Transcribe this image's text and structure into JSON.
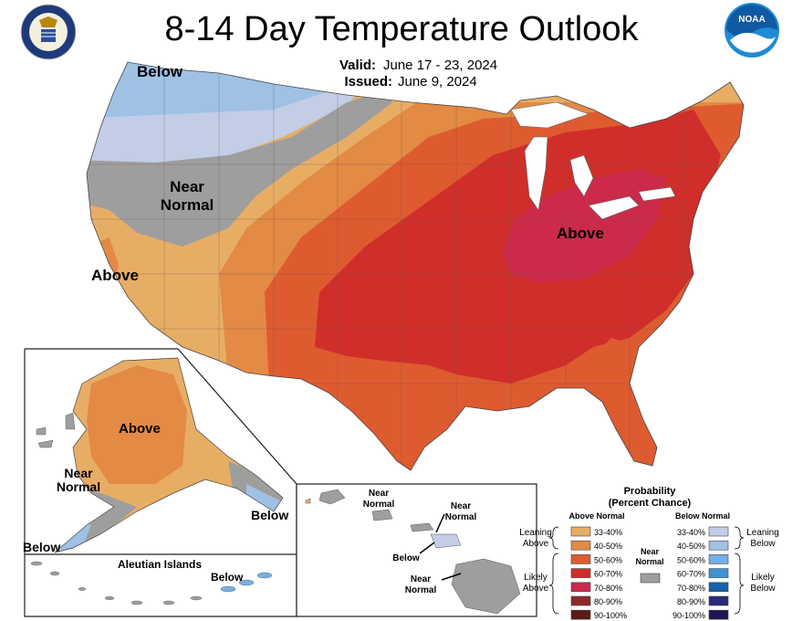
{
  "header": {
    "title": "8-14 Day Temperature Outlook",
    "valid_label": "Valid:",
    "valid_value": "June 17 - 23, 2024",
    "issued_label": "Issued:",
    "issued_value": "June 9, 2024"
  },
  "logos": {
    "commerce_icon": "doc-seal-icon",
    "noaa_icon": "noaa-logo-icon",
    "noaa_text": "NOAA"
  },
  "map_labels": {
    "conus_below": "Below",
    "conus_near_normal_1": "Near",
    "conus_near_normal_2": "Normal",
    "conus_above_west": "Above",
    "conus_above_east": "Above",
    "alaska_above": "Above",
    "alaska_near_normal_1": "Near",
    "alaska_near_normal_2": "Normal",
    "alaska_below_sw": "Below",
    "alaska_below_se": "Below",
    "aleutian_title": "Aleutian Islands",
    "aleutian_below": "Below",
    "hawaii_near_1a": "Near",
    "hawaii_near_1b": "Normal",
    "hawaii_near_2a": "Near",
    "hawaii_near_2b": "Normal",
    "hawaii_below": "Below",
    "hawaii_near_3a": "Near",
    "hawaii_near_3b": "Normal"
  },
  "legend": {
    "title_1": "Probability",
    "title_2": "(Percent Chance)",
    "above_header": "Above Normal",
    "below_header": "Below Normal",
    "near_normal_1": "Near",
    "near_normal_2": "Normal",
    "leaning_above_1": "Leaning",
    "leaning_above_2": "Above",
    "likely_above_1": "Likely",
    "likely_above_2": "Above",
    "leaning_below_1": "Leaning",
    "leaning_below_2": "Below",
    "likely_below_1": "Likely",
    "likely_below_2": "Below",
    "above_items": [
      {
        "label": "33-40%",
        "color": "#e8ad65"
      },
      {
        "label": "40-50%",
        "color": "#e38a45"
      },
      {
        "label": "50-60%",
        "color": "#de5b30"
      },
      {
        "label": "60-70%",
        "color": "#cf2e2a"
      },
      {
        "label": "70-80%",
        "color": "#cc2a4a"
      },
      {
        "label": "80-90%",
        "color": "#8e2a2a"
      },
      {
        "label": "90-100%",
        "color": "#5c1b1b"
      }
    ],
    "below_items": [
      {
        "label": "33-40%",
        "color": "#c3cde6"
      },
      {
        "label": "40-50%",
        "color": "#9fc1e4"
      },
      {
        "label": "50-60%",
        "color": "#74b0e4"
      },
      {
        "label": "60-70%",
        "color": "#3f94d6"
      },
      {
        "label": "70-80%",
        "color": "#1762a8"
      },
      {
        "label": "80-90%",
        "color": "#2a2a7a"
      },
      {
        "label": "90-100%",
        "color": "#1e1650"
      }
    ],
    "near_color": "#9e9e9e"
  }
}
